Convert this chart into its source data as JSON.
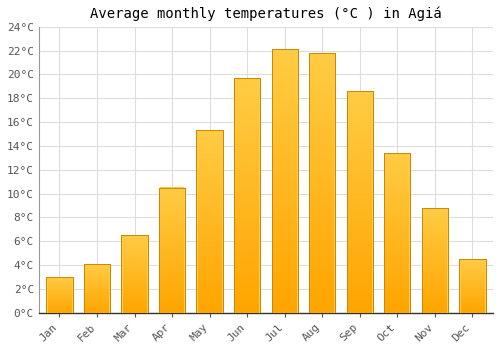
{
  "title": "Average monthly temperatures (°C ) in Agiá",
  "months": [
    "Jan",
    "Feb",
    "Mar",
    "Apr",
    "May",
    "Jun",
    "Jul",
    "Aug",
    "Sep",
    "Oct",
    "Nov",
    "Dec"
  ],
  "values": [
    3.0,
    4.1,
    6.5,
    10.5,
    15.3,
    19.7,
    22.1,
    21.8,
    18.6,
    13.4,
    8.8,
    4.5
  ],
  "bar_color_light": "#FFCC44",
  "bar_color_dark": "#FFA500",
  "bar_edge_color": "#CC8800",
  "ylim": [
    0,
    24
  ],
  "yticks": [
    0,
    2,
    4,
    6,
    8,
    10,
    12,
    14,
    16,
    18,
    20,
    22,
    24
  ],
  "ytick_labels": [
    "0°C",
    "2°C",
    "4°C",
    "6°C",
    "8°C",
    "10°C",
    "12°C",
    "14°C",
    "16°C",
    "18°C",
    "20°C",
    "22°C",
    "24°C"
  ],
  "background_color": "#FFFFFF",
  "grid_color": "#DDDDDD",
  "title_fontsize": 10,
  "tick_fontsize": 8,
  "font_family": "monospace"
}
